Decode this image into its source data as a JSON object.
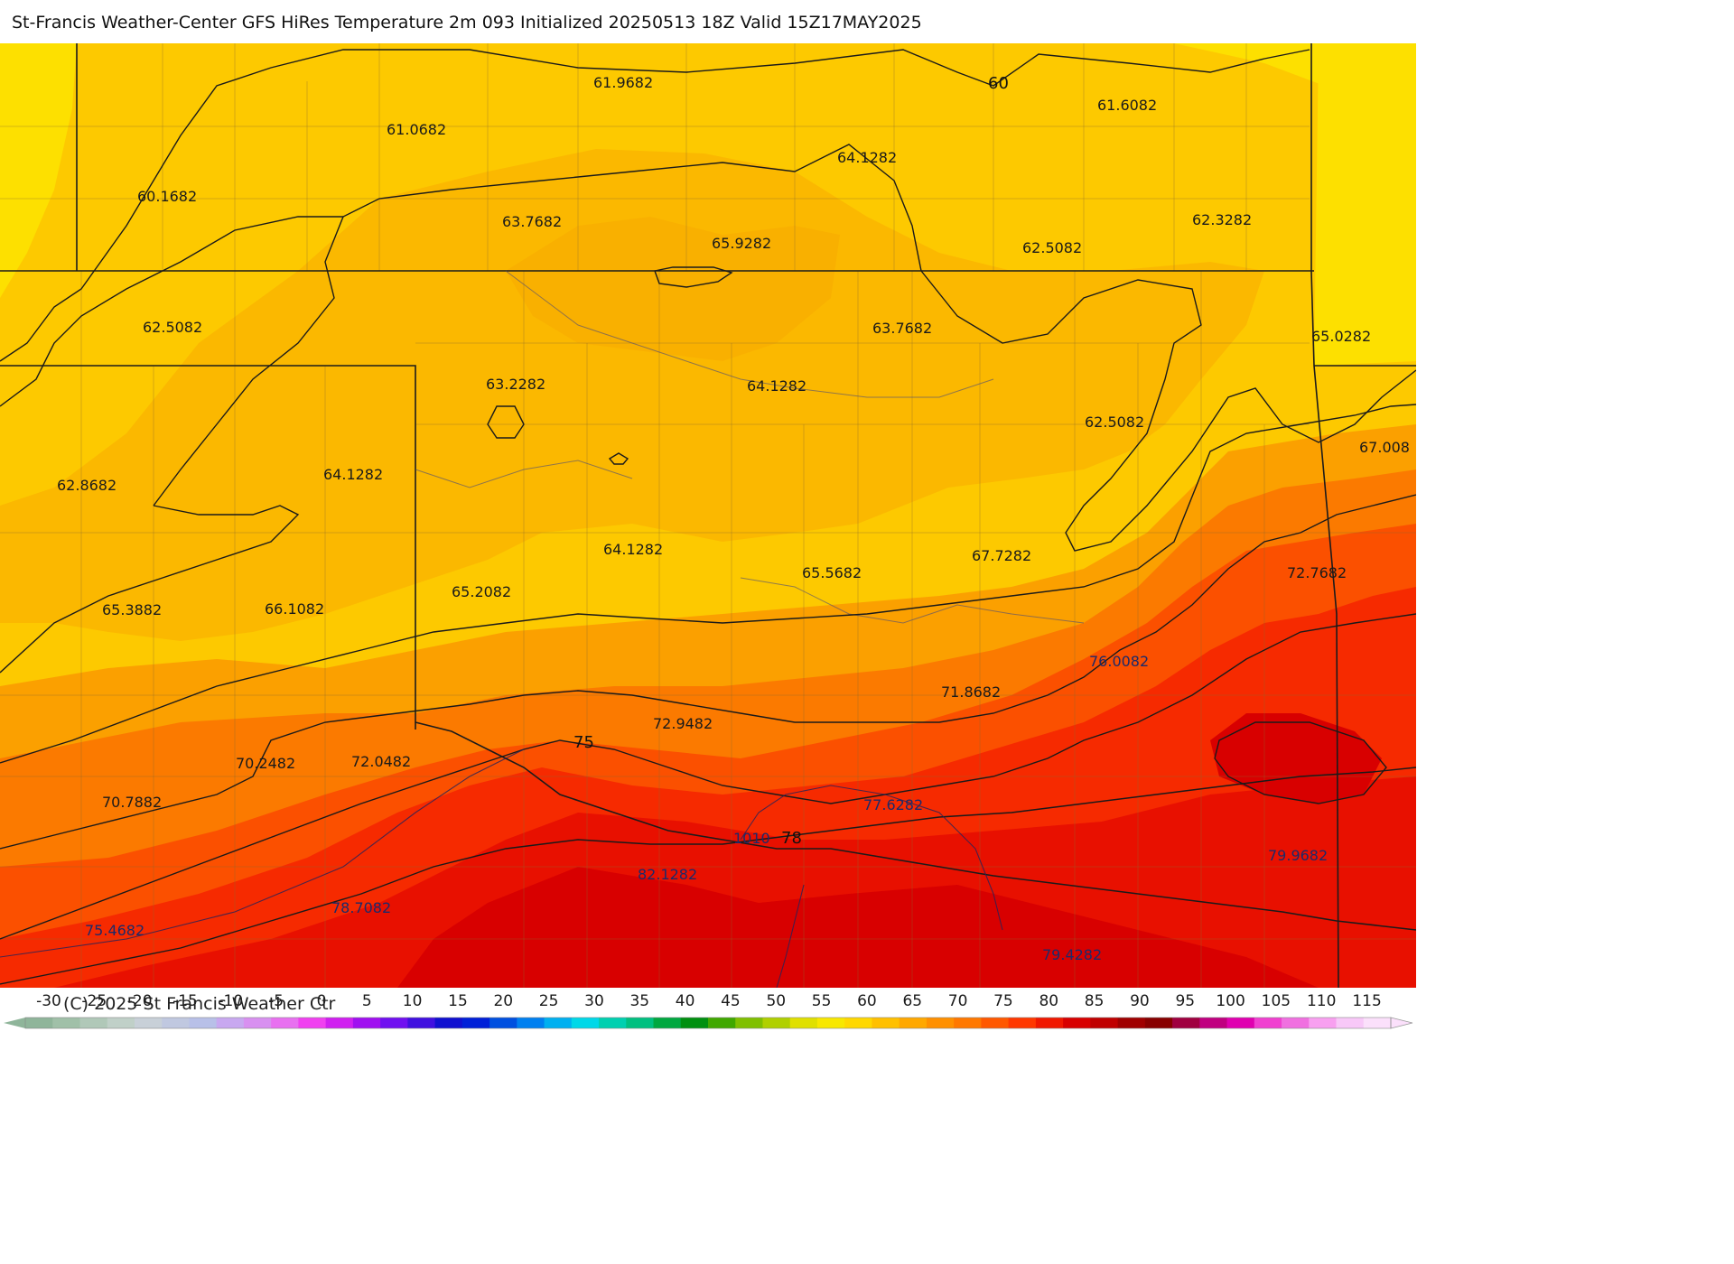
{
  "title": "St-Francis Weather-Center GFS HiRes Temperature 2m  093 Initialized 20250513 18Z Valid 15Z17MAY2025",
  "copyright": "(C) 2025 St Francis Weather Ctr",
  "map_values": [
    "61.9682",
    "61.0682",
    "61.6082",
    "64.1282",
    "60.1682",
    "63.7682",
    "65.9282",
    "62.5082",
    "62.3282",
    "62.5082",
    "63.7682",
    "65.0282",
    "63.2282",
    "64.1282",
    "62.5082",
    "67.008",
    "62.8682",
    "64.1282",
    "64.1282",
    "65.5682",
    "67.7282",
    "72.7682",
    "65.3882",
    "66.1082",
    "65.2082",
    "76.0082",
    "71.8682",
    "72.9482",
    "70.2482",
    "72.0482",
    "70.7882",
    "77.6282",
    "79.9682",
    "82.1282",
    "78.7082",
    "75.4682",
    "79.4282"
  ],
  "contour_labels": [
    "60",
    "75",
    "78"
  ],
  "pressure_label": "1010",
  "colorbar": {
    "ticks": [
      "-30",
      "-25",
      "-20",
      "-15",
      "-10",
      "-5",
      "0",
      "5",
      "10",
      "15",
      "20",
      "25",
      "30",
      "35",
      "40",
      "45",
      "50",
      "55",
      "60",
      "65",
      "70",
      "75",
      "80",
      "85",
      "90",
      "95",
      "100",
      "105",
      "110",
      "115"
    ],
    "colors": [
      "#8fb59a",
      "#a0c0a8",
      "#b0c8b8",
      "#c0d0c8",
      "#c8d0d8",
      "#c0c8e0",
      "#b8c0e8",
      "#c8a8f0",
      "#d890f0",
      "#e870f0",
      "#f040f0",
      "#d020f0",
      "#a010f0",
      "#7010f0",
      "#4010e0",
      "#1010d0",
      "#0020d8",
      "#0050e0",
      "#0080f0",
      "#00b0f0",
      "#00d8e8",
      "#00d0b0",
      "#00c080",
      "#00a840",
      "#009010",
      "#40a800",
      "#80c000",
      "#b0d000",
      "#e0e000",
      "#f8e800",
      "#ffd800",
      "#ffc000",
      "#ffa800",
      "#ff9000",
      "#ff7800",
      "#ff5800",
      "#ff3800",
      "#f01800",
      "#d80000",
      "#c00000",
      "#a00000",
      "#880000",
      "#a00040",
      "#c00080",
      "#e000b0",
      "#f040d0",
      "#f070e0",
      "#f8a0f0",
      "#f8c8f8",
      "#fbe0fb"
    ]
  }
}
